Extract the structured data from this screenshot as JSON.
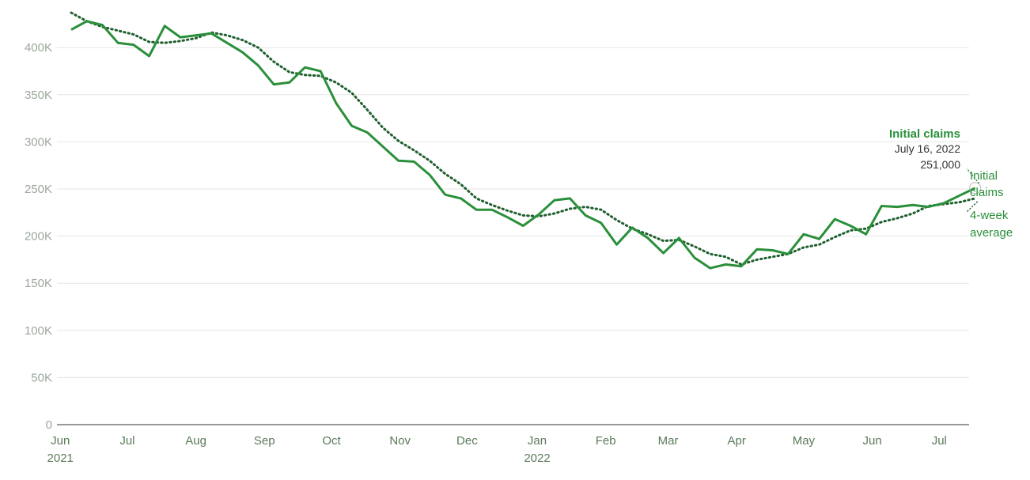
{
  "colors": {
    "claims": "#2a8f3a",
    "average": "#1f5f2e",
    "grid": "#e6e6e6",
    "ytick": "#9aa79a",
    "xtick": "#5b7a5b"
  },
  "annotation": {
    "title": "Initial claims",
    "date": "July 16, 2022",
    "value": "251,000"
  },
  "series_labels": {
    "claims": [
      "Initial",
      "claims"
    ],
    "average": [
      "4-week",
      "average"
    ]
  },
  "chart_data": {
    "type": "line",
    "x_unit": "week index from June 5, 2021",
    "ylim": [
      0,
      440000
    ],
    "yticks": [
      0,
      50000,
      100000,
      150000,
      200000,
      250000,
      300000,
      350000,
      400000
    ],
    "ytick_labels": [
      "0",
      "50K",
      "100K",
      "150K",
      "200K",
      "250K",
      "300K",
      "350K",
      "400K"
    ],
    "xticks": [
      {
        "label": "Jun",
        "sublabel": "2021",
        "week": -0.7
      },
      {
        "label": "Jul",
        "week": 3.6
      },
      {
        "label": "Aug",
        "week": 8.0
      },
      {
        "label": "Sep",
        "week": 12.4
      },
      {
        "label": "Oct",
        "week": 16.7
      },
      {
        "label": "Nov",
        "week": 21.1
      },
      {
        "label": "Dec",
        "week": 25.4
      },
      {
        "label": "Jan",
        "sublabel": "2022",
        "week": 29.9
      },
      {
        "label": "Feb",
        "week": 34.3
      },
      {
        "label": "Mar",
        "week": 38.3
      },
      {
        "label": "Apr",
        "week": 42.7
      },
      {
        "label": "May",
        "week": 47.0
      },
      {
        "label": "Jun",
        "week": 51.4
      },
      {
        "label": "Jul",
        "week": 55.7
      }
    ],
    "series": [
      {
        "name": "Initial claims",
        "values": [
          419000,
          428000,
          424000,
          405000,
          403000,
          391000,
          423000,
          411000,
          413000,
          415000,
          405000,
          395000,
          381000,
          361000,
          363000,
          379000,
          375000,
          341000,
          317000,
          310000,
          295000,
          280000,
          279000,
          265000,
          244000,
          240000,
          228000,
          228000,
          220000,
          211000,
          223000,
          238000,
          240000,
          222000,
          214000,
          191000,
          209000,
          198000,
          182000,
          198000,
          177000,
          166000,
          170000,
          168000,
          186000,
          185000,
          181000,
          202000,
          197000,
          218000,
          211000,
          202000,
          232000,
          231000,
          233000,
          231000,
          235000,
          243000,
          251000
        ]
      },
      {
        "name": "4-week average",
        "values": [
          437000,
          428000,
          422000,
          418000,
          414000,
          406000,
          405000,
          407000,
          410000,
          416000,
          413000,
          408000,
          400000,
          385000,
          374000,
          371000,
          370000,
          363000,
          352000,
          334000,
          315000,
          301000,
          291000,
          280000,
          266000,
          255000,
          240000,
          233000,
          227000,
          222000,
          221000,
          224000,
          229000,
          231000,
          228000,
          217000,
          208000,
          202000,
          195000,
          196000,
          189000,
          181000,
          178000,
          170000,
          175000,
          178000,
          181000,
          188000,
          191000,
          199000,
          206000,
          208000,
          215000,
          219000,
          224000,
          232000,
          234000,
          236000,
          240000
        ]
      }
    ]
  }
}
